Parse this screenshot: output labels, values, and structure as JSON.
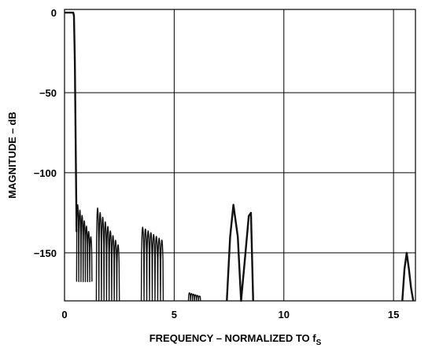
{
  "chart_data": {
    "type": "line",
    "title": "",
    "xlabel": "FREQUENCY – NORMALIZED TO f",
    "xlabel_subscript": "S",
    "ylabel": "MAGNITUDE – dB",
    "xlim": [
      0,
      16
    ],
    "ylim": [
      -180,
      2
    ],
    "xticks": [
      0,
      5,
      10,
      15
    ],
    "yticks": [
      0,
      -50,
      -100,
      -150
    ],
    "grid": true,
    "series": [
      {
        "segments": [
          {
            "x": [
              0.0,
              0.4,
              0.43,
              0.47,
              0.5,
              0.53,
              0.55
            ],
            "y": [
              0.0,
              0.0,
              -2,
              -30,
              -70,
              -110,
              -137
            ]
          },
          {
            "lobes": {
              "x_start": 0.55,
              "x_end": 1.25,
              "count": 7,
              "peak_start": -120,
              "peak_end": -140,
              "null": -168
            }
          },
          {
            "lobes": {
              "x_start": 1.45,
              "x_end": 2.5,
              "count": 9,
              "peak_start": -122,
              "peak_end": -145,
              "null": -180
            }
          },
          {
            "lobes": {
              "x_start": 3.5,
              "x_end": 4.5,
              "count": 8,
              "peak_start": -134,
              "peak_end": -142,
              "null": -180
            }
          },
          {
            "lobes": {
              "x_start": 5.65,
              "x_end": 6.2,
              "count": 6,
              "peak_start": -175,
              "peak_end": -177,
              "null": -180
            }
          },
          {
            "x": [
              7.4,
              7.55,
              7.7,
              7.9,
              8.05,
              8.25,
              8.4,
              8.5,
              8.6
            ],
            "y": [
              -180,
              -140,
              -120,
              -140,
              -180,
              -150,
              -127,
              -125,
              -180
            ]
          },
          {
            "x": [
              15.4,
              15.5,
              15.6,
              15.7,
              15.8,
              15.9
            ],
            "y": [
              -180,
              -160,
              -150,
              -160,
              -172,
              -180
            ]
          }
        ]
      }
    ]
  }
}
